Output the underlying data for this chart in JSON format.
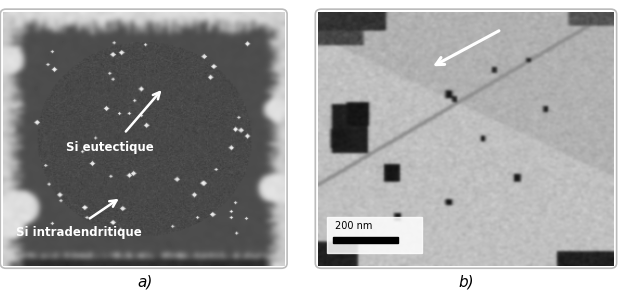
{
  "fig_width": 6.18,
  "fig_height": 2.92,
  "dpi": 100,
  "label_a": "a)",
  "label_b": "b)",
  "label_fontsize": 11,
  "text_si_eutectique": "Si eutectique",
  "text_si_intradendritique": "Si intradendritique",
  "annotation_fontsize": 8.5,
  "scale_bar_text": "200 nm",
  "background_color": "#ffffff"
}
